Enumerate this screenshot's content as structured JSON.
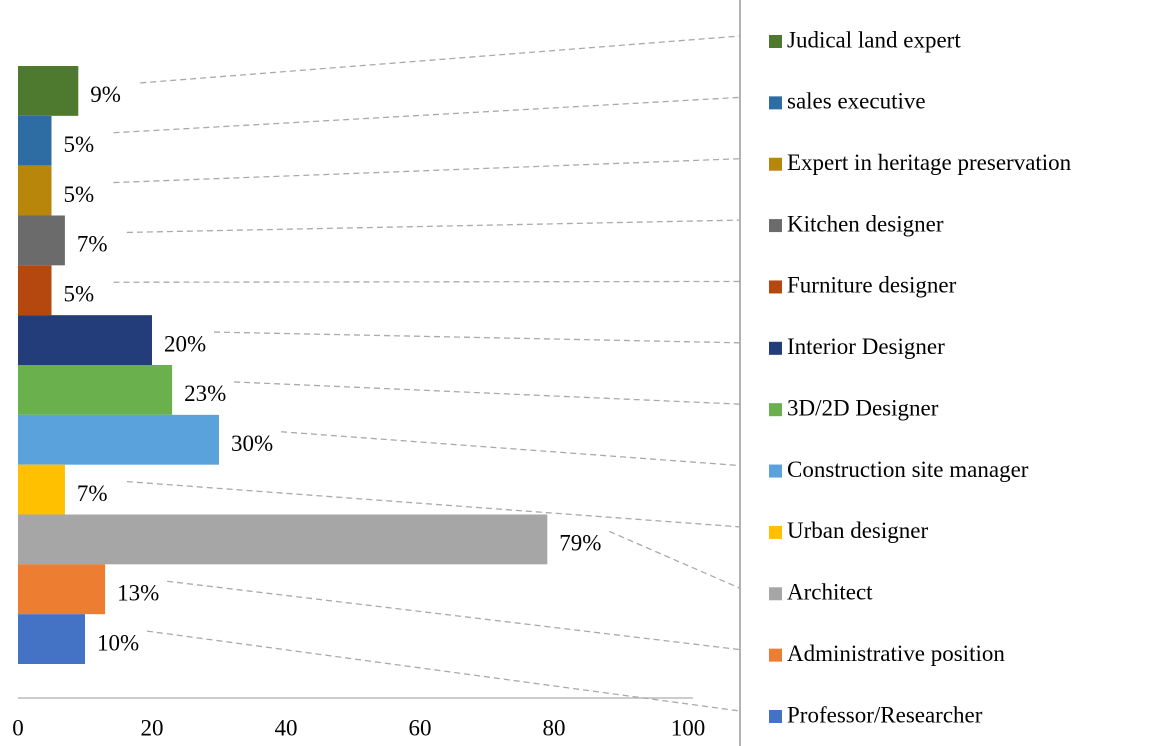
{
  "chart_data": {
    "type": "bar",
    "orientation": "horizontal",
    "categories": [
      "Judical land expert",
      "sales executive",
      "Expert in heritage preservation",
      "Kitchen designer",
      "Furniture designer",
      "Interior Designer",
      "3D/2D Designer",
      "Construction site manager",
      "Urban designer",
      "Architect",
      "Administrative position",
      "Professor/Researcher"
    ],
    "values": [
      9,
      5,
      5,
      7,
      5,
      20,
      23,
      30,
      7,
      79,
      13,
      10
    ],
    "value_labels": [
      "9%",
      "5%",
      "5%",
      "7%",
      "5%",
      "20%",
      "23%",
      "30%",
      "7%",
      "79%",
      "13%",
      "10%"
    ],
    "colors": [
      "#4e7a2f",
      "#2e6da4",
      "#b8860b",
      "#6b6b6b",
      "#b5480f",
      "#223d7a",
      "#6ab04c",
      "#5aa2dc",
      "#ffc000",
      "#a6a6a6",
      "#ed7d31",
      "#4472c4"
    ],
    "xlim": [
      0,
      100
    ],
    "xticks": [
      0,
      20,
      40,
      60,
      80,
      100
    ]
  }
}
